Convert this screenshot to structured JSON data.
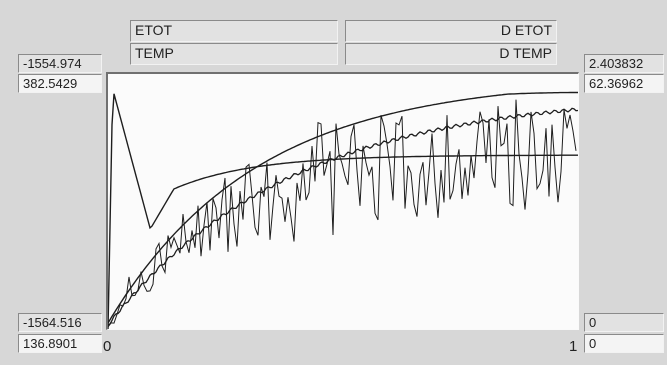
{
  "headers": {
    "etot": "ETOT",
    "temp": "TEMP",
    "detot": "D ETOT",
    "dtemp": "D TEMP"
  },
  "left_axis": {
    "etot_max": "-1554.974",
    "temp_max": "382.5429",
    "etot_min": "-1564.516",
    "temp_min": "136.8901"
  },
  "right_axis": {
    "detot_max": "2.403832",
    "dtemp_max": "62.36962",
    "detot_min": "0",
    "dtemp_min": "0"
  },
  "x_axis": {
    "start": "0",
    "end": "1"
  },
  "series_colors": {
    "curves": "#1e1e1e",
    "background": "#fbfbfb"
  }
}
